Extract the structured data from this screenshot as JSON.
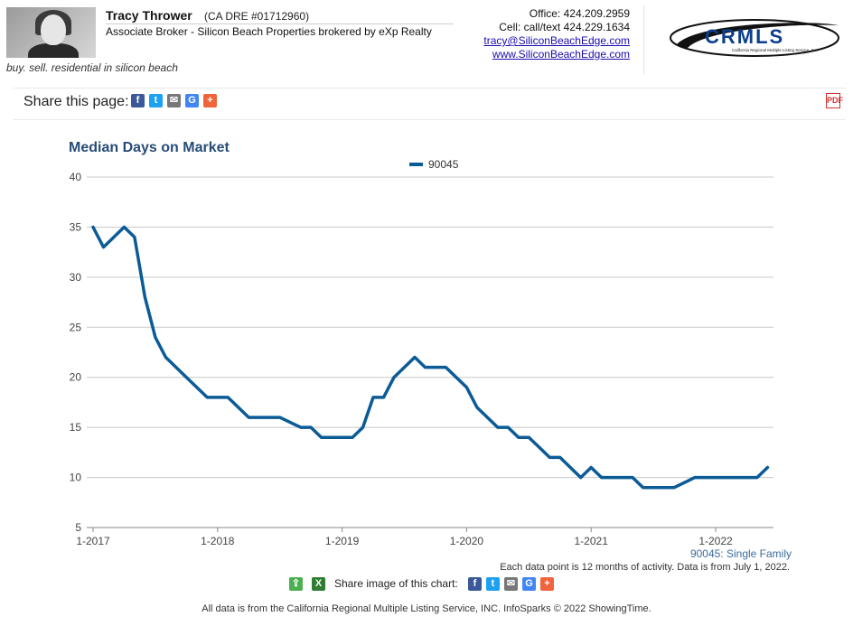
{
  "agent": {
    "name": "Tracy Thrower",
    "dre": "(CA DRE #01712960)",
    "title": "Associate Broker - Silicon Beach Properties brokered by eXp Realty",
    "tagline": "buy. sell. residential in silicon beach"
  },
  "contact": {
    "office": "Office: 424.209.2959",
    "cell": "Cell: call/text 424.229.1634",
    "email": "tracy@SiliconBeachEdge.com",
    "website": "www.SiliconBeachEdge.com"
  },
  "logo": {
    "text": "CRMLS",
    "subtext": "California Regional Multiple Listing Service, Inc."
  },
  "share_page": {
    "label": "Share this page:",
    "icons": [
      "facebook-icon",
      "twitter-icon",
      "email-icon",
      "google-icon",
      "plus-icon"
    ]
  },
  "chart_data": {
    "type": "line",
    "title": "Median Days on Market",
    "legend_position": "top-center",
    "grid": true,
    "series": [
      {
        "name": "90045",
        "color": "#0b5b96",
        "x": [
          0,
          1,
          3,
          4,
          5,
          6,
          7,
          9,
          11,
          13,
          15,
          18,
          20,
          21,
          22,
          25,
          26,
          27,
          28,
          29,
          30,
          31,
          32,
          34,
          35,
          36,
          37,
          38,
          39,
          40,
          41,
          42,
          43,
          44,
          45,
          46,
          47,
          48,
          49,
          50,
          52,
          53,
          56,
          58,
          61,
          62,
          63,
          64,
          65
        ],
        "values": [
          35,
          33,
          35,
          34,
          28,
          24,
          22,
          20,
          18,
          18,
          16,
          16,
          15,
          15,
          14,
          14,
          15,
          18,
          18,
          20,
          21,
          22,
          21,
          21,
          20,
          19,
          17,
          16,
          15,
          15,
          14,
          14,
          13,
          12,
          12,
          11,
          10,
          11,
          10,
          10,
          10,
          9,
          9,
          10,
          10,
          10,
          10,
          10,
          11
        ]
      }
    ],
    "x_tick_labels": [
      "1-2017",
      "1-2018",
      "1-2019",
      "1-2020",
      "1-2021",
      "1-2022"
    ],
    "x_tick_positions": [
      0,
      12,
      24,
      36,
      48,
      60
    ],
    "xlim": [
      0,
      65
    ],
    "y_ticks": [
      5,
      10,
      15,
      20,
      25,
      30,
      35,
      40
    ],
    "ylim": [
      5,
      40
    ]
  },
  "chart_meta": {
    "subtitle": "90045: Single Family",
    "note": "Each data point is 12 months of activity. Data is from July 1, 2022."
  },
  "chart_share": {
    "label": "Share image of this chart:"
  },
  "footer": {
    "text": "All data is from the California Regional Multiple Listing Service, INC. InfoSparks © 2022 ShowingTime."
  },
  "colors": {
    "line": "#0b5b96",
    "title": "#274c76",
    "facebook": "#3b5998",
    "twitter": "#1da1f2",
    "email": "#777777",
    "google": "#4285f4",
    "plus": "#f0643c"
  }
}
